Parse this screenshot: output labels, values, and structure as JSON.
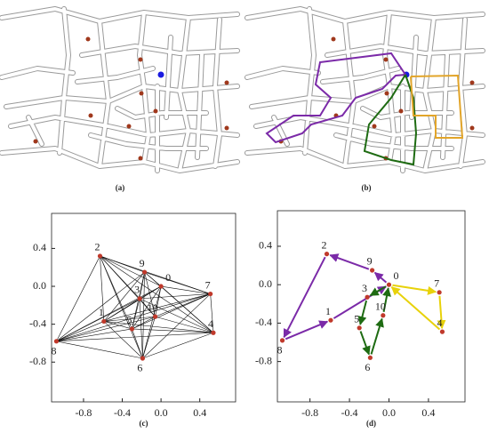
{
  "panels": {
    "a": {
      "caption": "(a)"
    },
    "b": {
      "caption": "(b)"
    }
  },
  "chart_data": [
    {
      "type": "graph",
      "caption": "(c)",
      "xlim": [
        -1.13,
        0.77
      ],
      "ylim": [
        -1.22,
        0.77
      ],
      "xticks": [
        -0.8,
        -0.4,
        {
          "value": 0,
          "label": "0.0"
        },
        0.4
      ],
      "yticks": [
        0.4,
        {
          "value": 0,
          "label": "0.0"
        },
        -0.4,
        -0.8
      ],
      "node_color": "#c0392b",
      "edge_color": "#111111",
      "nodes": [
        {
          "label": "0",
          "x": 0.0,
          "y": 0.0
        },
        {
          "label": "1",
          "x": -0.59,
          "y": -0.37
        },
        {
          "label": "2",
          "x": -0.63,
          "y": 0.32
        },
        {
          "label": "3",
          "x": -0.22,
          "y": -0.13
        },
        {
          "label": "4",
          "x": 0.54,
          "y": -0.49
        },
        {
          "label": "5",
          "x": -0.3,
          "y": -0.45
        },
        {
          "label": "6",
          "x": -0.19,
          "y": -0.76
        },
        {
          "label": "7",
          "x": 0.51,
          "y": -0.08
        },
        {
          "label": "8",
          "x": -1.08,
          "y": -0.58
        },
        {
          "label": "9",
          "x": -0.17,
          "y": 0.15
        },
        {
          "label": "10",
          "x": -0.06,
          "y": -0.32
        }
      ]
    },
    {
      "type": "routes",
      "caption": "(d)",
      "xlim": [
        -1.13,
        0.77
      ],
      "ylim": [
        -1.22,
        0.77
      ],
      "xticks": [
        -0.8,
        -0.4,
        {
          "value": 0,
          "label": "0.0"
        },
        0.4
      ],
      "yticks": [
        0.4,
        {
          "value": 0,
          "label": "0.0"
        },
        -0.4,
        -0.8
      ],
      "node_color": "#c0392b",
      "nodes": [
        {
          "label": "0",
          "x": 0.0,
          "y": 0.0
        },
        {
          "label": "1",
          "x": -0.59,
          "y": -0.37
        },
        {
          "label": "2",
          "x": -0.63,
          "y": 0.32
        },
        {
          "label": "3",
          "x": -0.22,
          "y": -0.13
        },
        {
          "label": "4",
          "x": 0.54,
          "y": -0.49
        },
        {
          "label": "5",
          "x": -0.3,
          "y": -0.45
        },
        {
          "label": "6",
          "x": -0.19,
          "y": -0.76
        },
        {
          "label": "7",
          "x": 0.51,
          "y": -0.08
        },
        {
          "label": "8",
          "x": -1.08,
          "y": -0.58
        },
        {
          "label": "9",
          "x": -0.17,
          "y": 0.15
        },
        {
          "label": "10",
          "x": -0.06,
          "y": -0.32
        }
      ],
      "routes": [
        {
          "color": "#7b2aa8",
          "nodes": [
            0,
            9,
            2,
            8,
            1,
            0
          ]
        },
        {
          "color": "#1e6b12",
          "nodes": [
            0,
            3,
            5,
            6,
            10,
            0
          ]
        },
        {
          "color": "#e8d20a",
          "nodes": [
            0,
            7,
            4,
            0
          ]
        }
      ]
    }
  ]
}
